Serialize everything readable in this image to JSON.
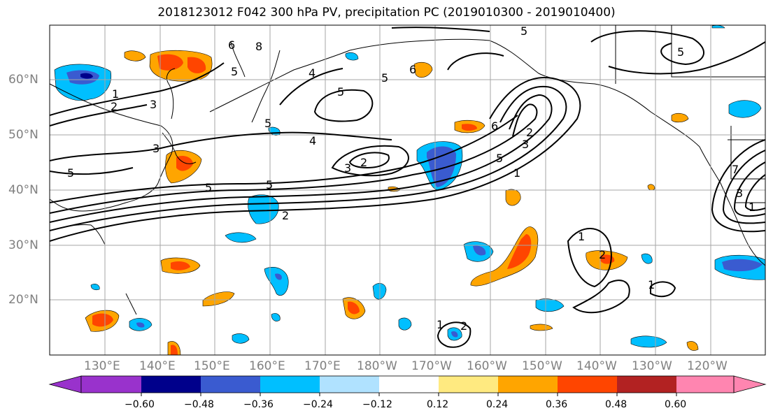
{
  "title": "2018123012 F042 300 hPa PV, precipitation PC (2019010300 - 2019010400)",
  "lat_labels": [
    "60°N",
    "50°N",
    "40°N",
    "30°N",
    "20°N"
  ],
  "lon_labels": [
    "130°E",
    "140°E",
    "150°E",
    "160°E",
    "170°E",
    "180°W",
    "170°W",
    "160°W",
    "150°W",
    "140°W",
    "130°W",
    "120°W"
  ],
  "contour_labels": [
    "1",
    "2",
    "3",
    "4",
    "5",
    "6",
    "7",
    "8"
  ],
  "colorbar": {
    "ticks": [
      "−0.60",
      "−0.48",
      "−0.36",
      "−0.24",
      "−0.12",
      "0.12",
      "0.24",
      "0.36",
      "0.48",
      "0.60"
    ],
    "colors": [
      "#9932cc",
      "#00008b",
      "#3a5bd0",
      "#00bfff",
      "#b0e2ff",
      "#ffffff",
      "#ffea80",
      "#ffa500",
      "#ff4500",
      "#b22222",
      "#ff85b0"
    ]
  }
}
